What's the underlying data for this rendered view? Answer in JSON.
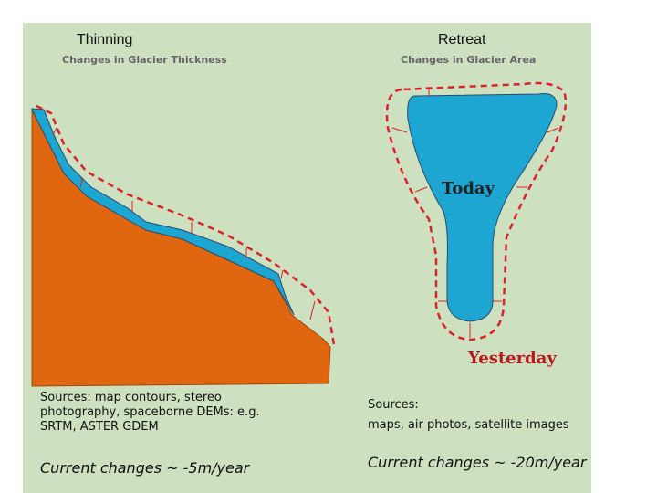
{
  "left": {
    "title": "Thinning",
    "subtitle": "Changes in Glacier Thickness",
    "sources": "Sources: map contours, stereo photography, spaceborne DEMs: e.g. SRTM, ASTER GDEM",
    "rate": "Current changes ~ -5m/year"
  },
  "right": {
    "title": "Retreat",
    "subtitle": "Changes in Glacier Area",
    "today": "Today",
    "yesterday": "Yesterday",
    "sources_heading": "Sources:",
    "sources": "maps, air photos, satellite images",
    "rate": "Current changes ~ -20m/year"
  }
}
